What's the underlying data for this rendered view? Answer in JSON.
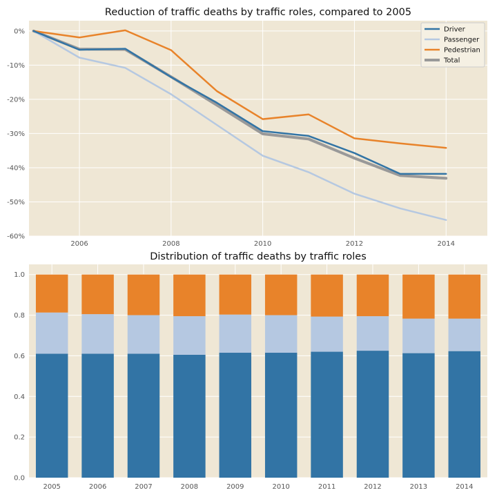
{
  "colors": {
    "background": "#EFE7D5",
    "grid": "#FFFFFF",
    "driver": "#3274A5",
    "passenger": "#B5C8E1",
    "pedestrian": "#E8832A",
    "total": "#999999"
  },
  "chart_data": [
    {
      "type": "line",
      "title": "Reduction of traffic deaths by traffic roles, compared to 2005",
      "x": [
        2005,
        2006,
        2007,
        2008,
        2009,
        2010,
        2011,
        2012,
        2013,
        2014
      ],
      "xticks": [
        2006,
        2008,
        2010,
        2012,
        2014
      ],
      "xlim": [
        2004.9,
        2014.9
      ],
      "ylim": [
        -60,
        3
      ],
      "yticks": [
        0,
        -10,
        -20,
        -30,
        -40,
        -50,
        -60
      ],
      "ytick_labels": [
        "0%",
        "-10%",
        "-20%",
        "-30%",
        "-40%",
        "-50%",
        "-60%"
      ],
      "grid": true,
      "legend": "top-right",
      "series": [
        {
          "name": "Driver",
          "color": "#3274A5",
          "values": [
            0,
            -5.5,
            -5.2,
            -13.5,
            -21,
            -29.3,
            -30.7,
            -35.7,
            -41.8,
            -41.8
          ]
        },
        {
          "name": "Passenger",
          "color": "#B5C8E1",
          "values": [
            0,
            -7.8,
            -10.8,
            -18.5,
            -27.5,
            -36.5,
            -41.3,
            -47.6,
            -51.9,
            -55.3
          ]
        },
        {
          "name": "Pedestrian",
          "color": "#E8832A",
          "values": [
            0,
            -1.9,
            0.2,
            -5.6,
            -17.6,
            -25.8,
            -24.4,
            -31.4,
            -32.9,
            -34.2
          ]
        },
        {
          "name": "Total",
          "color": "#999999",
          "values": [
            0,
            -5.3,
            -5.4,
            -13.4,
            -21.7,
            -30.1,
            -31.6,
            -37.2,
            -42.3,
            -43.1
          ]
        }
      ]
    },
    {
      "type": "bar",
      "stacked": true,
      "title": "Distribution of traffic deaths by traffic roles",
      "categories": [
        "2005",
        "2006",
        "2007",
        "2008",
        "2009",
        "2010",
        "2011",
        "2012",
        "2013",
        "2014"
      ],
      "ylim": [
        0,
        1.05
      ],
      "yticks": [
        0.0,
        0.2,
        0.4,
        0.6,
        0.8,
        1.0
      ],
      "ytick_labels": [
        "0.0",
        "0.2",
        "0.4",
        "0.6",
        "0.8",
        "1.0"
      ],
      "grid": true,
      "series": [
        {
          "color": "#3274A5",
          "values": [
            0.61,
            0.61,
            0.61,
            0.605,
            0.615,
            0.615,
            0.62,
            0.625,
            0.613,
            0.623
          ]
        },
        {
          "color": "#B5C8E1",
          "values": [
            0.203,
            0.195,
            0.19,
            0.19,
            0.188,
            0.185,
            0.173,
            0.17,
            0.17,
            0.16
          ]
        },
        {
          "color": "#E8832A",
          "values": [
            0.187,
            0.195,
            0.2,
            0.205,
            0.197,
            0.2,
            0.207,
            0.205,
            0.217,
            0.217
          ]
        }
      ]
    }
  ]
}
